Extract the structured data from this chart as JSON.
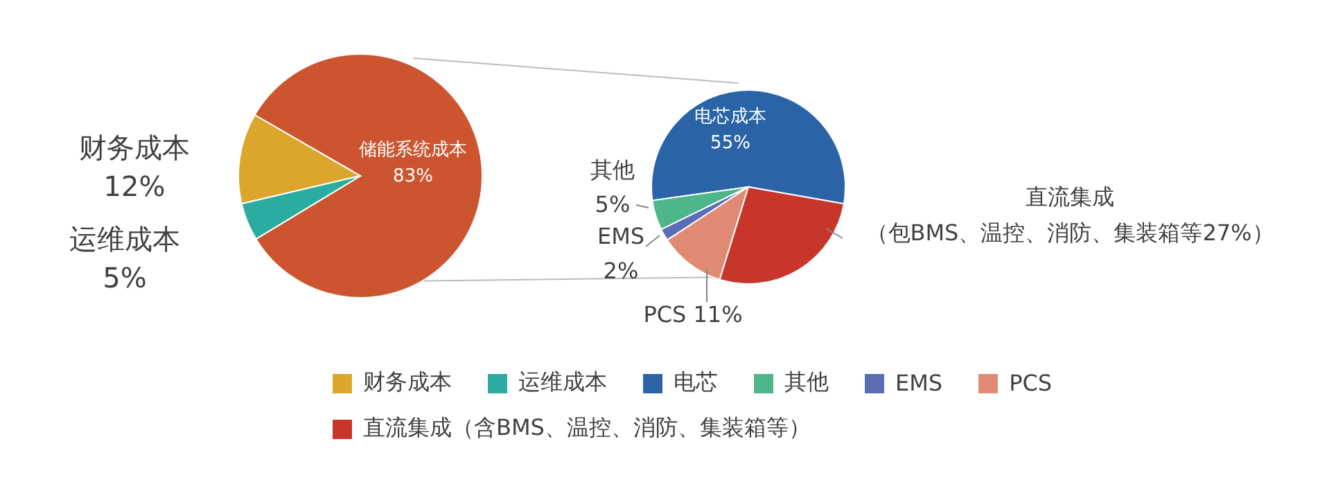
{
  "chart_data": [
    {
      "type": "pie",
      "categories": [
        "储能系统成本",
        "财务成本",
        "运维成本"
      ],
      "values": [
        83,
        12,
        5
      ],
      "colors": [
        "#cc5530",
        "#dca62c",
        "#2aaca0"
      ],
      "value_labels": [
        "83%",
        "12%",
        "5%"
      ],
      "legend": "bottom"
    },
    {
      "type": "pie",
      "categories": [
        "电芯",
        "其他",
        "EMS",
        "PCS",
        "直流集成（含BMS、温控、消防、集装箱等）"
      ],
      "values": [
        55,
        5,
        2,
        11,
        27
      ],
      "colors": [
        "#2b64a6",
        "#4db68a",
        "#5b6db5",
        "#e08a73",
        "#c8352b"
      ],
      "value_labels": [
        "电芯成本\n55%",
        "其他\n5%",
        "EMS\n2%",
        "PCS 11%",
        "（包BMS、温控、消防、集装箱等27%）"
      ],
      "annotations": [
        "直流集成"
      ],
      "legend": "bottom"
    }
  ]
}
